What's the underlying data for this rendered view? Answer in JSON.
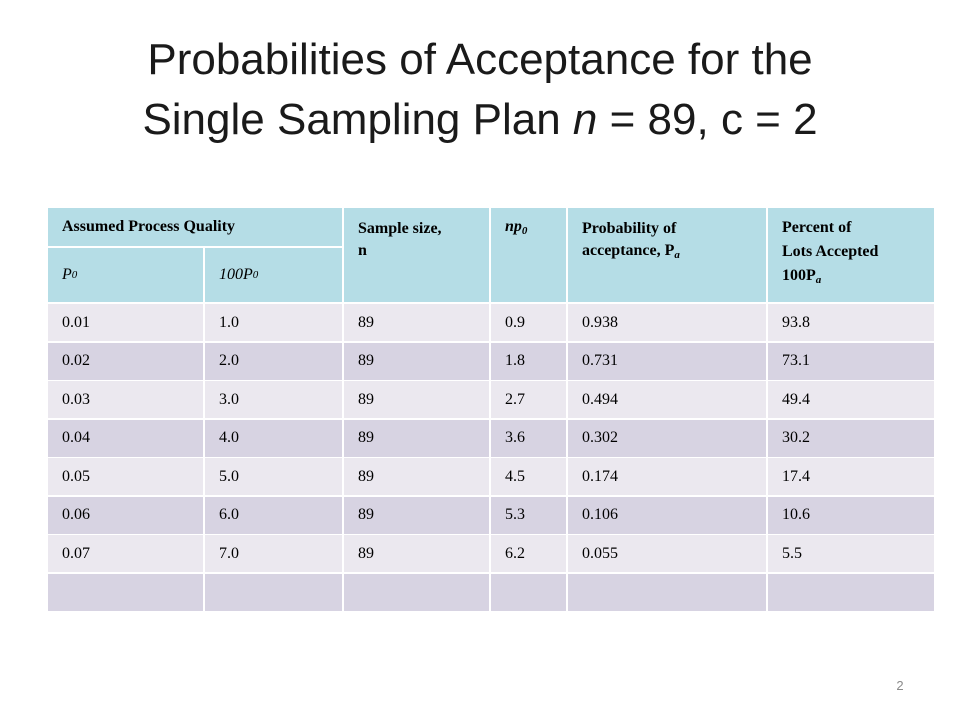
{
  "title": {
    "line1": "Probabilities of Acceptance for the",
    "line2_pre": "Single Sampling Plan ",
    "line2_n": "n",
    "line2_post": " = 89, c = 2"
  },
  "table": {
    "header": {
      "assumed": "Assumed Process Quality",
      "sample_size": "Sample size,",
      "sample_size_n": "n",
      "np0_main": "np",
      "np0_sub": "0",
      "prob_line1": "Probability  of",
      "prob_line2": "acceptance, P",
      "prob_sub": "a",
      "pct_line1": "Percent of",
      "pct_line2": "Lots Accepted",
      "pct_line3": "100P",
      "pct_sub": "a",
      "p0_main": "P",
      "p0_sub": "0",
      "p100_main": "100P",
      "p100_sub": "0"
    },
    "rows": [
      [
        "0.01",
        "1.0",
        "89",
        "0.9",
        "0.938",
        "93.8"
      ],
      [
        "0.02",
        "2.0",
        "89",
        "1.8",
        "0.731",
        "73.1"
      ],
      [
        "0.03",
        "3.0",
        "89",
        "2.7",
        "0.494",
        "49.4"
      ],
      [
        "0.04",
        "4.0",
        "89",
        "3.6",
        "0.302",
        "30.2"
      ],
      [
        "0.05",
        "5.0",
        "89",
        "4.5",
        "0.174",
        "17.4"
      ],
      [
        "0.06",
        "6.0",
        "89",
        "5.3",
        "0.106",
        "10.6"
      ],
      [
        "0.07",
        "7.0",
        "89",
        "6.2",
        "0.055",
        "5.5"
      ],
      [
        "",
        "",
        "",
        "",
        "",
        ""
      ]
    ]
  },
  "page_number": "2"
}
